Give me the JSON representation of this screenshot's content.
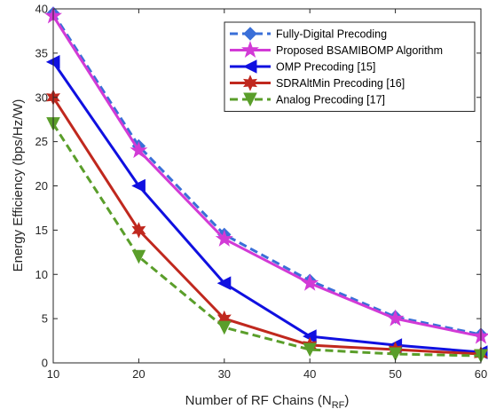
{
  "chart_data": {
    "type": "line",
    "title": "",
    "xlabel": "Number of RF Chains (N",
    "xlabel_sub": "RF",
    "xlabel_end": ")",
    "ylabel": "Energy Efficiency (bps/Hz/W)",
    "xlim": [
      10,
      60
    ],
    "ylim": [
      0,
      40
    ],
    "xticks": [
      "10",
      "20",
      "30",
      "40",
      "50",
      "60"
    ],
    "yticks": [
      "0",
      "5",
      "10",
      "15",
      "20",
      "25",
      "30",
      "35",
      "40"
    ],
    "grid": false,
    "legend_position": "top-right",
    "x": [
      10,
      20,
      30,
      40,
      50,
      60
    ],
    "series": [
      {
        "name": "Fully-Digital Precoding",
        "values": [
          39.5,
          24.5,
          14.5,
          9.3,
          5.2,
          3.2
        ],
        "color": "#3a6fd8",
        "style": "dashed",
        "marker": "diamond"
      },
      {
        "name": "Proposed BSAMIBOMP Algorithm",
        "values": [
          39.2,
          24.0,
          14.0,
          9.0,
          5.0,
          3.0
        ],
        "color": "#d23ad6",
        "style": "solid",
        "marker": "star"
      },
      {
        "name": "OMP Precoding [15]",
        "values": [
          34.0,
          20.0,
          9.0,
          3.0,
          2.0,
          1.2
        ],
        "color": "#1010e0",
        "style": "solid",
        "marker": "triangle-left"
      },
      {
        "name": "SDRAltMin Precoding [16]",
        "values": [
          30.0,
          15.0,
          5.0,
          2.0,
          1.5,
          1.0
        ],
        "color": "#c0281e",
        "style": "solid",
        "marker": "hexagram"
      },
      {
        "name": "Analog Precoding [17]",
        "values": [
          27.0,
          12.0,
          4.0,
          1.5,
          1.0,
          0.8
        ],
        "color": "#5a9e2a",
        "style": "dashed",
        "marker": "triangle-down"
      }
    ]
  }
}
